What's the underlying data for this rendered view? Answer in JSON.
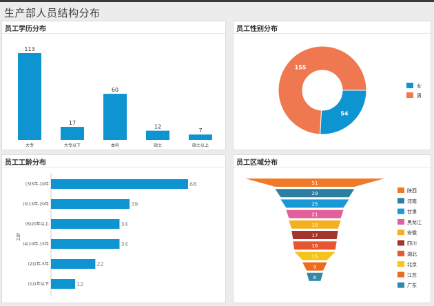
{
  "page": {
    "title": "生产部人员结构分布"
  },
  "panels": {
    "education": {
      "title": "员工学历分布"
    },
    "gender": {
      "title": "员工性别分布"
    },
    "tenure": {
      "title": "员工工龄分布"
    },
    "region": {
      "title": "员工区域分布"
    }
  },
  "chart_data": [
    {
      "id": "education",
      "type": "bar",
      "categories": [
        "大专",
        "大专以下",
        "本科",
        "硕士",
        "硕士以上"
      ],
      "values": [
        113,
        17,
        60,
        12,
        7
      ],
      "ylim": [
        0,
        113
      ],
      "color": "#0f94d2"
    },
    {
      "id": "gender",
      "type": "pie",
      "donut": true,
      "labels": [
        "女",
        "男"
      ],
      "values": [
        54,
        155
      ],
      "colors": [
        "#0f94d2",
        "#f07850"
      ],
      "legend": "right"
    },
    {
      "id": "tenure",
      "type": "bar",
      "orientation": "horizontal",
      "categories": [
        "(3)5年-10年",
        "(5)15年-20年",
        "(6)20年以上",
        "(4)10年-15年",
        "(2)1年-5年",
        "(1)1年以下"
      ],
      "values": [
        68,
        39,
        34,
        34,
        22,
        12
      ],
      "ylabel": "工龄",
      "xlim": [
        0,
        68
      ],
      "color": "#0f94d2"
    },
    {
      "id": "region",
      "type": "funnel",
      "categories": [
        "陕西",
        "河南",
        "甘肃",
        "黑龙江",
        "安徽",
        "四川",
        "湖北",
        "北京",
        "江苏",
        "广东"
      ],
      "values": [
        51,
        29,
        25,
        21,
        19,
        17,
        16,
        15,
        9,
        6
      ],
      "colors": [
        "#f07a28",
        "#2c7fa0",
        "#1899d6",
        "#e0609a",
        "#f5b021",
        "#a3342e",
        "#e8562f",
        "#f5c31a",
        "#ee6a1c",
        "#3488a9"
      ],
      "legend": "right"
    }
  ]
}
